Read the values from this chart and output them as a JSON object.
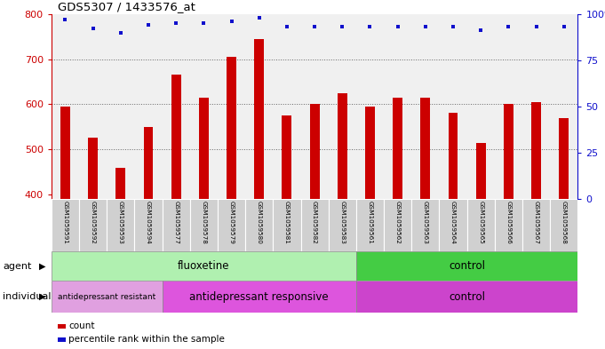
{
  "title": "GDS5307 / 1433576_at",
  "samples": [
    "GSM1059591",
    "GSM1059592",
    "GSM1059593",
    "GSM1059594",
    "GSM1059577",
    "GSM1059578",
    "GSM1059579",
    "GSM1059580",
    "GSM1059581",
    "GSM1059582",
    "GSM1059583",
    "GSM1059561",
    "GSM1059562",
    "GSM1059563",
    "GSM1059564",
    "GSM1059565",
    "GSM1059566",
    "GSM1059567",
    "GSM1059568"
  ],
  "counts": [
    595,
    525,
    458,
    550,
    665,
    615,
    705,
    745,
    575,
    600,
    625,
    595,
    615,
    615,
    580,
    515,
    600,
    605,
    570
  ],
  "percentiles": [
    97,
    92,
    90,
    94,
    95,
    95,
    96,
    98,
    93,
    93,
    93,
    93,
    93,
    93,
    93,
    91,
    93,
    93,
    93
  ],
  "bar_color": "#cc0000",
  "dot_color": "#1010cc",
  "ylim_left": [
    390,
    800
  ],
  "ylim_right": [
    0,
    100
  ],
  "yticks_left": [
    400,
    500,
    600,
    700,
    800
  ],
  "yticks_right": [
    0,
    25,
    50,
    75,
    100
  ],
  "grid_values": [
    500,
    600,
    700
  ],
  "agent_groups": [
    {
      "label": "fluoxetine",
      "start": 0,
      "end": 11,
      "color": "#b0f0b0"
    },
    {
      "label": "control",
      "start": 11,
      "end": 19,
      "color": "#44cc44"
    }
  ],
  "individual_groups": [
    {
      "label": "antidepressant resistant",
      "start": 0,
      "end": 4,
      "color": "#e0a0e0"
    },
    {
      "label": "antidepressant responsive",
      "start": 4,
      "end": 11,
      "color": "#dd55dd"
    },
    {
      "label": "control",
      "start": 11,
      "end": 19,
      "color": "#cc44cc"
    }
  ],
  "legend_items": [
    {
      "label": "count",
      "color": "#cc0000"
    },
    {
      "label": "percentile rank within the sample",
      "color": "#1010cc"
    }
  ]
}
